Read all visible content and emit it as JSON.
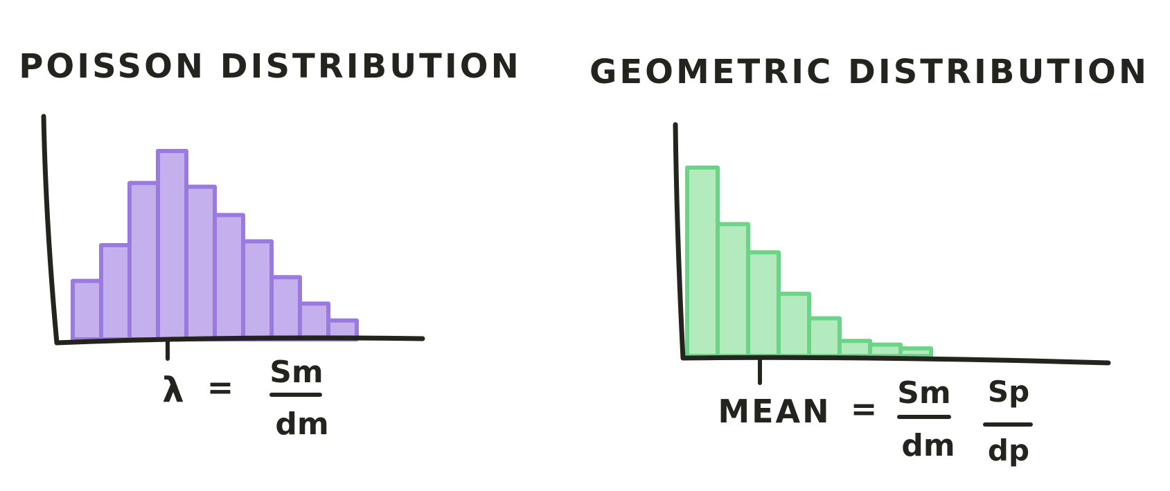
{
  "colors": {
    "ink": "#24241f",
    "poisson_stroke": "#9b7ae0",
    "poisson_fill": "#b9a2ea",
    "geometric_stroke": "#6cd487",
    "geometric_fill": "#a6e6b3"
  },
  "chart_data": [
    {
      "type": "bar",
      "title": "POISSON DISTRIBUTION",
      "values": [
        0.31,
        0.5,
        0.83,
        1.0,
        0.81,
        0.66,
        0.52,
        0.33,
        0.19,
        0.1
      ],
      "ylim": [
        0,
        1.0
      ],
      "grid": false,
      "annotation": {
        "lhs": "λ",
        "equals": "=",
        "fractions": [
          {
            "num": "Sm",
            "den": "dm"
          }
        ]
      }
    },
    {
      "type": "bar",
      "title": "GEOMETRIC DISTRIBUTION",
      "values": [
        1.0,
        0.7,
        0.55,
        0.33,
        0.2,
        0.08,
        0.06,
        0.04
      ],
      "ylim": [
        0,
        1.0
      ],
      "grid": false,
      "annotation": {
        "lhs": "MEAN",
        "equals": "=",
        "fractions": [
          {
            "num": "Sm",
            "den": "dm"
          },
          {
            "num": "Sp",
            "den": "dp"
          }
        ]
      }
    }
  ]
}
